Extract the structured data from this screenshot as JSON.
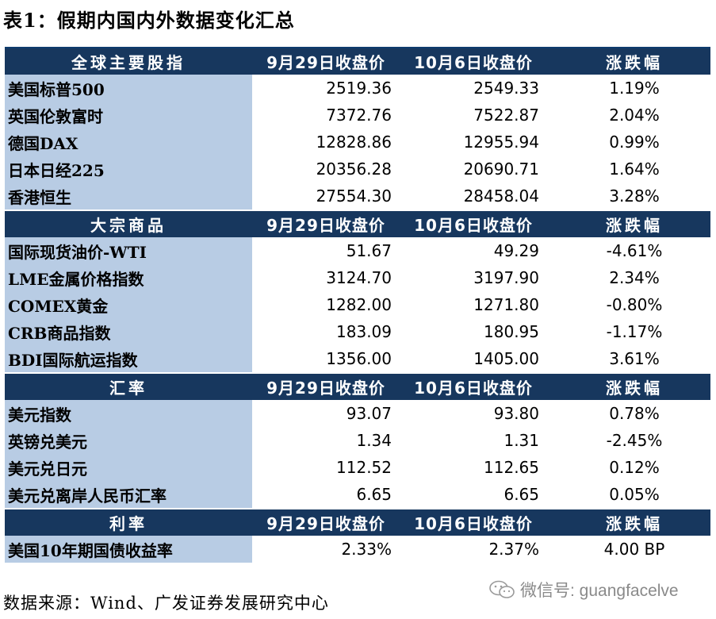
{
  "title": "表1：假期内国内外数据变化汇总",
  "columns": {
    "col1": "9月29日收盘价",
    "col2": "10月6日收盘价",
    "col3": "涨跌幅"
  },
  "sections": [
    {
      "header": "全球主要股指",
      "rows": [
        {
          "name": "美国标普500",
          "v1": "2519.36",
          "v2": "2549.33",
          "chg": "1.19%"
        },
        {
          "name": "英国伦敦富时",
          "v1": "7372.76",
          "v2": "7522.87",
          "chg": "2.04%"
        },
        {
          "name": "德国DAX",
          "v1": "12828.86",
          "v2": "12955.94",
          "chg": "0.99%"
        },
        {
          "name": "日本日经225",
          "v1": "20356.28",
          "v2": "20690.71",
          "chg": "1.64%"
        },
        {
          "name": "香港恒生",
          "v1": "27554.30",
          "v2": "28458.04",
          "chg": "3.28%"
        }
      ]
    },
    {
      "header": "大宗商品",
      "rows": [
        {
          "name": "国际现货油价-WTI",
          "v1": "51.67",
          "v2": "49.29",
          "chg": "-4.61%"
        },
        {
          "name": "LME金属价格指数",
          "v1": "3124.70",
          "v2": "3197.90",
          "chg": "2.34%"
        },
        {
          "name": "COMEX黄金",
          "v1": "1282.00",
          "v2": "1271.80",
          "chg": "-0.80%"
        },
        {
          "name": "CRB商品指数",
          "v1": "183.09",
          "v2": "180.95",
          "chg": "-1.17%"
        },
        {
          "name": "BDI国际航运指数",
          "v1": "1356.00",
          "v2": "1405.00",
          "chg": "3.61%"
        }
      ]
    },
    {
      "header": "汇率",
      "rows": [
        {
          "name": "美元指数",
          "v1": "93.07",
          "v2": "93.80",
          "chg": "0.78%"
        },
        {
          "name": "英镑兑美元",
          "v1": "1.34",
          "v2": "1.31",
          "chg": "-2.45%"
        },
        {
          "name": "美元兑日元",
          "v1": "112.52",
          "v2": "112.65",
          "chg": "0.12%"
        },
        {
          "name": "美元兑离岸人民币汇率",
          "v1": "6.65",
          "v2": "6.65",
          "chg": "0.05%"
        }
      ]
    },
    {
      "header": "利率",
      "rows": [
        {
          "name": "美国10年期国债收益率",
          "v1": "2.33%",
          "v2": "2.37%",
          "chg": "4.00 BP"
        }
      ]
    }
  ],
  "source": "数据来源：Wind、广发证券发展研究中心",
  "watermark": "微信号: guangfacelve",
  "watermark_icon": "wechat-icon"
}
